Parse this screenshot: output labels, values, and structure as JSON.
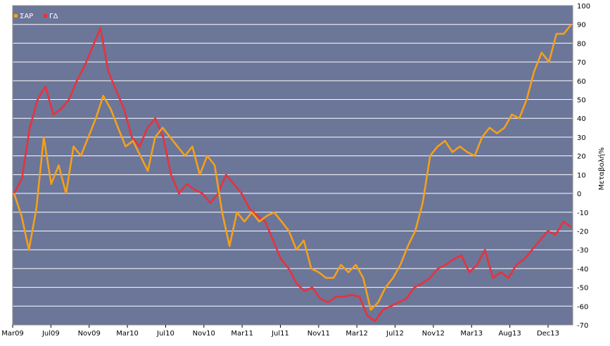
{
  "chart_data": {
    "type": "line",
    "title": "",
    "xlabel": "",
    "ylabel": "Μεταβολή%",
    "ylim": [
      -70,
      100
    ],
    "yticks": [
      100,
      90,
      80,
      70,
      60,
      50,
      40,
      30,
      20,
      10,
      0,
      -10,
      -20,
      -30,
      -40,
      -50,
      -60,
      -70
    ],
    "x_tick_labels": [
      "Mar09",
      "Jul09",
      "Nov09",
      "Mar10",
      "Jul10",
      "Nov10",
      "Mar11",
      "Jul11",
      "Nov11",
      "Mar12",
      "Jul12",
      "Nov12",
      "Mar13",
      "Aug13",
      "Dec13"
    ],
    "grid": true,
    "legend_position": "top-left",
    "colors": {
      "plot_bg": "#6b7699",
      "grid": "#ffffff",
      "series_1": "#f5a01a",
      "series_2": "#e8323c"
    },
    "series": [
      {
        "name": "ΣΑΡ",
        "values": [
          0,
          -12,
          -30,
          -8,
          30,
          5,
          15,
          0,
          25,
          20,
          30,
          40,
          52,
          45,
          35,
          25,
          28,
          20,
          12,
          30,
          35,
          30,
          25,
          20,
          25,
          10,
          20,
          15,
          -10,
          -28,
          -10,
          -15,
          -10,
          -15,
          -12,
          -10,
          -15,
          -20,
          -30,
          -25,
          -40,
          -42,
          -45,
          -45,
          -38,
          -42,
          -38,
          -45,
          -62,
          -58,
          -50,
          -45,
          -38,
          -28,
          -20,
          -5,
          20,
          25,
          28,
          22,
          25,
          22,
          20,
          30,
          35,
          32,
          35,
          42,
          40,
          50,
          65,
          75,
          70,
          85,
          85,
          90
        ]
      },
      {
        "name": "ΓΔ",
        "values": [
          0,
          8,
          35,
          50,
          57,
          42,
          45,
          50,
          60,
          68,
          78,
          88,
          65,
          55,
          45,
          30,
          25,
          35,
          40,
          30,
          10,
          0,
          5,
          2,
          0,
          -5,
          0,
          10,
          5,
          0,
          -8,
          -12,
          -15,
          -25,
          -35,
          -40,
          -48,
          -52,
          -50,
          -56,
          -58,
          -55,
          -55,
          -54,
          -55,
          -65,
          -68,
          -62,
          -60,
          -58,
          -56,
          -50,
          -48,
          -45,
          -40,
          -38,
          -35,
          -33,
          -42,
          -38,
          -30,
          -45,
          -42,
          -45,
          -38,
          -35,
          -30,
          -25,
          -20,
          -22,
          -15,
          -18
        ]
      }
    ]
  }
}
